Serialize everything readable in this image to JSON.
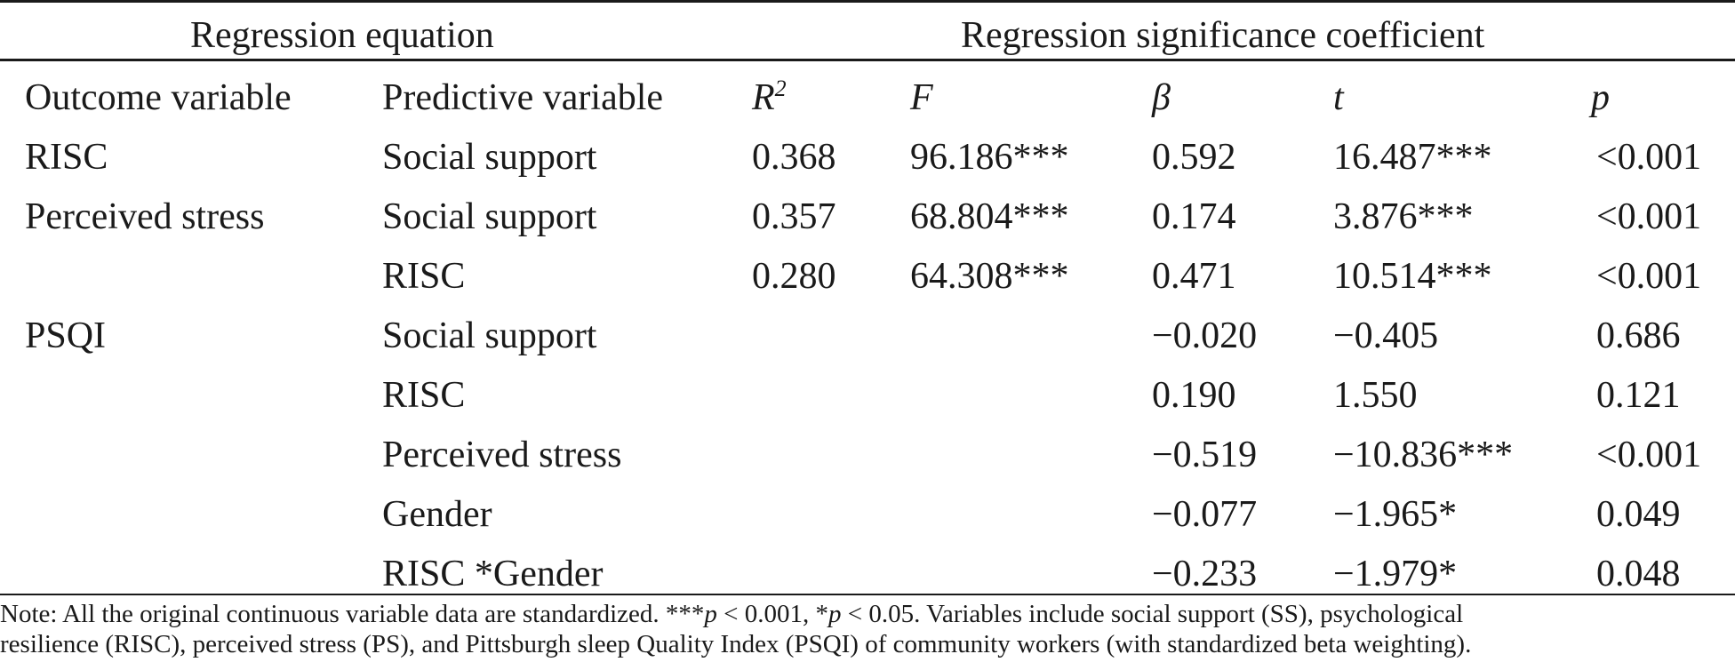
{
  "header": {
    "group_left": "Regression equation",
    "group_right": "Regression significance coefficient",
    "columns": {
      "outcome": "Outcome variable",
      "predictive": "Predictive variable",
      "r2_base": "R",
      "r2_sup": "2",
      "f": "F",
      "beta": "β",
      "t": "t",
      "p": "p"
    }
  },
  "rows": [
    {
      "outcome": "RISC",
      "predictive": "Social support",
      "r2": "0.368",
      "f": "96.186***",
      "beta": "0.592",
      "t": "16.487***",
      "p": "<0.001"
    },
    {
      "outcome": "Perceived stress",
      "predictive": "Social support",
      "r2": "0.357",
      "f": "68.804***",
      "beta": "0.174",
      "t": "3.876***",
      "p": "<0.001"
    },
    {
      "outcome": "",
      "predictive": "RISC",
      "r2": "0.280",
      "f": "64.308***",
      "beta": "0.471",
      "t": "10.514***",
      "p": "<0.001"
    },
    {
      "outcome": "PSQI",
      "predictive": "Social support",
      "r2": "",
      "f": "",
      "beta": "−0.020",
      "t": "−0.405",
      "p": "0.686"
    },
    {
      "outcome": "",
      "predictive": "RISC",
      "r2": "",
      "f": "",
      "beta": "0.190",
      "t": "1.550",
      "p": "0.121"
    },
    {
      "outcome": "",
      "predictive": "Perceived stress",
      "r2": "",
      "f": "",
      "beta": "−0.519",
      "t": "−10.836***",
      "p": "<0.001"
    },
    {
      "outcome": "",
      "predictive": "Gender",
      "r2": "",
      "f": "",
      "beta": "−0.077",
      "t": "−1.965*",
      "p": "0.049"
    },
    {
      "outcome": "",
      "predictive": "RISC *Gender",
      "r2": "",
      "f": "",
      "beta": "−0.233",
      "t": "−1.979*",
      "p": "0.048"
    }
  ],
  "note": {
    "prefix": "Note: All the original continuous variable data are standardized. ***",
    "p1": "p",
    "mid1": " < 0.001, *",
    "p2": "p",
    "mid2": " < 0.05. Variables include social support (SS), psychological",
    "line2": "resilience (RISC), perceived stress (PS), and Pittsburgh sleep Quality Index (PSQI) of community workers (with standardized beta weighting)."
  }
}
